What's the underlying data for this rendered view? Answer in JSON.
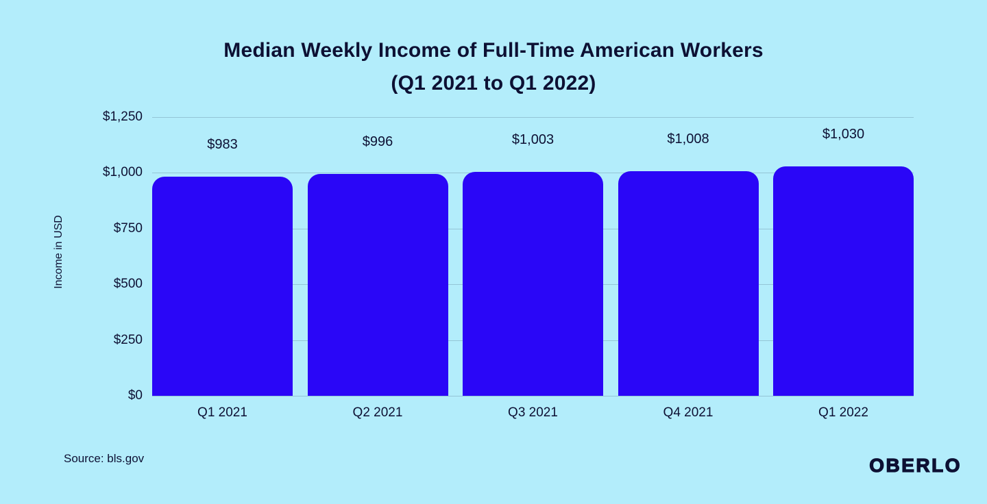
{
  "title": {
    "line1": "Median Weekly Income of Full-Time American Workers",
    "line2": "(Q1 2021 to Q1 2022)"
  },
  "chart_data": {
    "type": "bar",
    "title": "Median Weekly Income of Full-Time American Workers (Q1 2021 to Q1 2022)",
    "categories": [
      "Q1 2021",
      "Q2 2021",
      "Q3 2021",
      "Q4 2021",
      "Q1 2022"
    ],
    "values": [
      983,
      996,
      1003,
      1008,
      1030
    ],
    "value_labels": [
      "$983",
      "$996",
      "$1,003",
      "$1,008",
      "$1,030"
    ],
    "xlabel": "",
    "ylabel": "Income in USD",
    "ylim": [
      0,
      1250
    ],
    "yticks": [
      0,
      250,
      500,
      750,
      1000,
      1250
    ],
    "ytick_labels": [
      "$0",
      "$250",
      "$500",
      "$750",
      "$1,000",
      "$1,250"
    ],
    "grid": true,
    "legend": false
  },
  "footer": {
    "source": "Source: bls.gov",
    "brand": "OBERLO"
  },
  "colors": {
    "background": "#b3edfb",
    "bar": "#2a06f7",
    "text": "#0d1033",
    "gridline": "rgba(13,16,51,0.18)"
  }
}
